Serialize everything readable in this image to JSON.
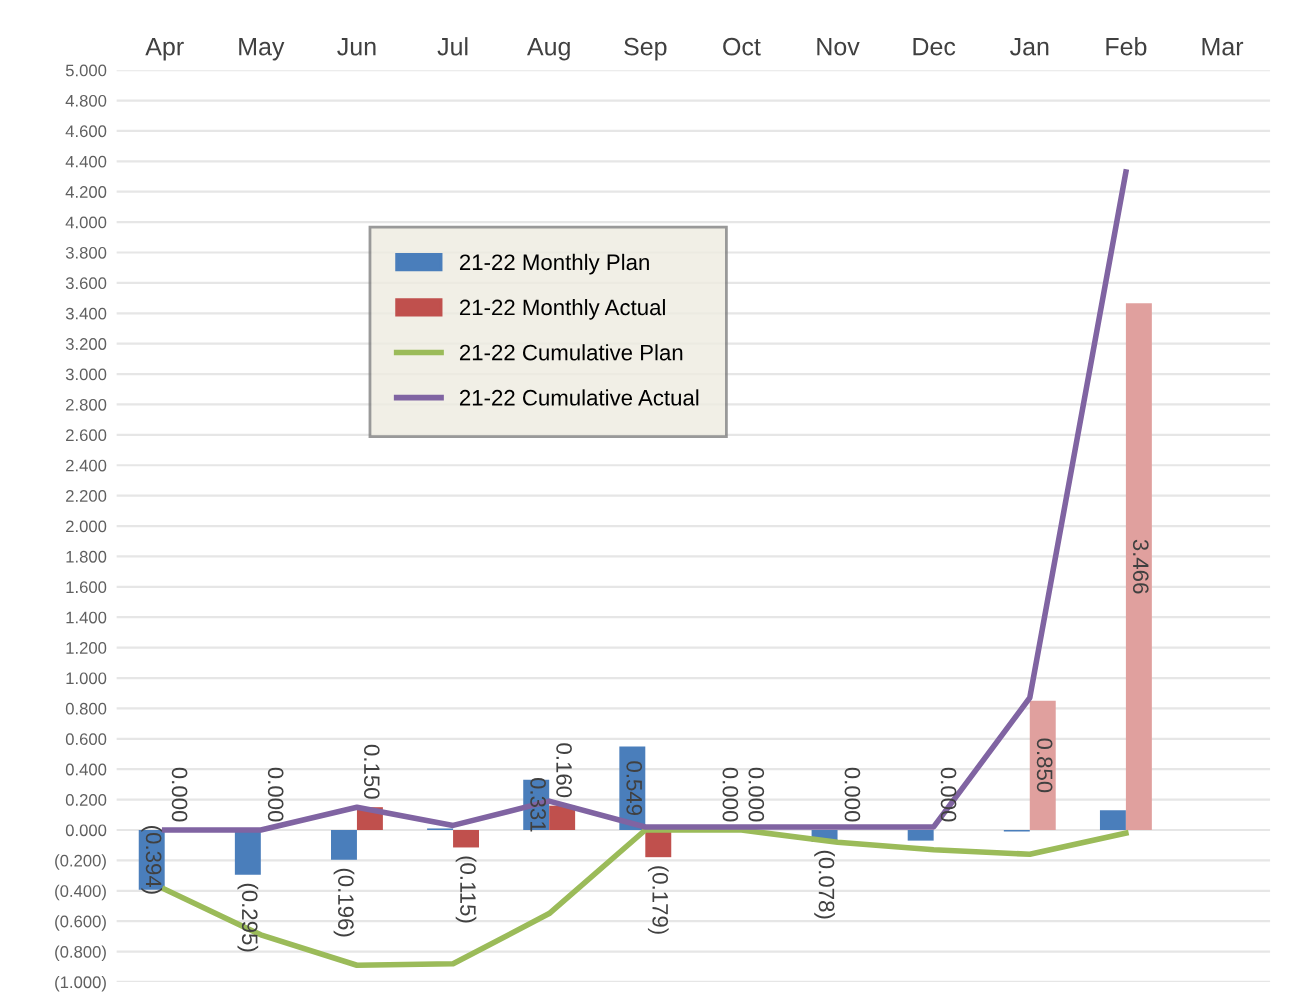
{
  "chart_data": {
    "type": "bar",
    "categories": [
      "Apr",
      "May",
      "Jun",
      "Jul",
      "Aug",
      "Sep",
      "Oct",
      "Nov",
      "Dec",
      "Jan",
      "Feb",
      "Mar"
    ],
    "series": [
      {
        "name": "21-22 Monthly Plan",
        "color": "#4a7ebb",
        "values": [
          -0.394,
          -0.295,
          -0.196,
          0.01,
          0.331,
          0.549,
          0.0,
          -0.078,
          -0.07,
          -0.01,
          0.13,
          null
        ],
        "value_labels": [
          "(0.394)",
          "(0.295)",
          "(0.196)",
          null,
          "0.331",
          "0.549",
          "0.000",
          "(0.078)",
          null,
          null,
          null,
          null
        ]
      },
      {
        "name": "21-22 Monthly Actual",
        "color": "#c0504d",
        "colors": [
          "#c0504d",
          "#c0504d",
          "#c0504d",
          "#c0504d",
          "#c0504d",
          "#c0504d",
          "#c0504d",
          "#c0504d",
          "#c0504d",
          "#e0a09e",
          "#e0a09e",
          "#c0504d"
        ],
        "values": [
          0.0,
          0.0,
          0.15,
          -0.115,
          0.16,
          -0.179,
          0.0,
          0.0,
          0.0,
          0.85,
          3.466,
          null
        ],
        "value_labels": [
          "0.000",
          "0.000",
          "0.150",
          "(0.115)",
          "0.160",
          "(0.179)",
          "0.000",
          "0.000",
          "0.000",
          "0.850",
          "3.466",
          null
        ]
      },
      {
        "name": "21-22 Cumulative Plan",
        "type": "line",
        "color": "#9bbb59",
        "values": [
          -0.39,
          -0.69,
          -0.89,
          -0.88,
          -0.55,
          0.0,
          0.0,
          -0.08,
          -0.13,
          -0.16,
          -0.02,
          null
        ]
      },
      {
        "name": "21-22 Cumulative Actual",
        "type": "line",
        "color": "#8064a2",
        "values": [
          0.0,
          0.0,
          0.15,
          0.03,
          0.19,
          0.02,
          0.02,
          0.02,
          0.02,
          0.87,
          4.33,
          null
        ]
      }
    ],
    "ylim": [
      -1.0,
      5.0
    ],
    "yticks": [
      {
        "value": -1.0,
        "label": "(1.000)"
      },
      {
        "value": -0.8,
        "label": "(0.800)"
      },
      {
        "value": -0.6,
        "label": "(0.600)"
      },
      {
        "value": -0.4,
        "label": "(0.400)"
      },
      {
        "value": -0.2,
        "label": "(0.200)"
      },
      {
        "value": 0.0,
        "label": "0.000"
      },
      {
        "value": 0.2,
        "label": "0.200"
      },
      {
        "value": 0.4,
        "label": "0.400"
      },
      {
        "value": 0.6,
        "label": "0.600"
      },
      {
        "value": 0.8,
        "label": "0.800"
      },
      {
        "value": 1.0,
        "label": "1.000"
      },
      {
        "value": 1.2,
        "label": "1.200"
      },
      {
        "value": 1.4,
        "label": "1.400"
      },
      {
        "value": 1.6,
        "label": "1.600"
      },
      {
        "value": 1.8,
        "label": "1.800"
      },
      {
        "value": 2.0,
        "label": "2.000"
      },
      {
        "value": 2.2,
        "label": "2.200"
      },
      {
        "value": 2.4,
        "label": "2.400"
      },
      {
        "value": 2.6,
        "label": "2.600"
      },
      {
        "value": 2.8,
        "label": "2.800"
      },
      {
        "value": 3.0,
        "label": "3.000"
      },
      {
        "value": 3.2,
        "label": "3.200"
      },
      {
        "value": 3.4,
        "label": "3.400"
      },
      {
        "value": 3.6,
        "label": "3.600"
      },
      {
        "value": 3.8,
        "label": "3.800"
      },
      {
        "value": 4.0,
        "label": "4.000"
      },
      {
        "value": 4.2,
        "label": "4.200"
      },
      {
        "value": 4.4,
        "label": "4.400"
      },
      {
        "value": 4.6,
        "label": "4.600"
      },
      {
        "value": 4.8,
        "label": "4.800"
      },
      {
        "value": 5.0,
        "label": "5.000"
      }
    ],
    "grid": "y",
    "legend": "top left",
    "marker": "none",
    "line_style": "solid"
  }
}
